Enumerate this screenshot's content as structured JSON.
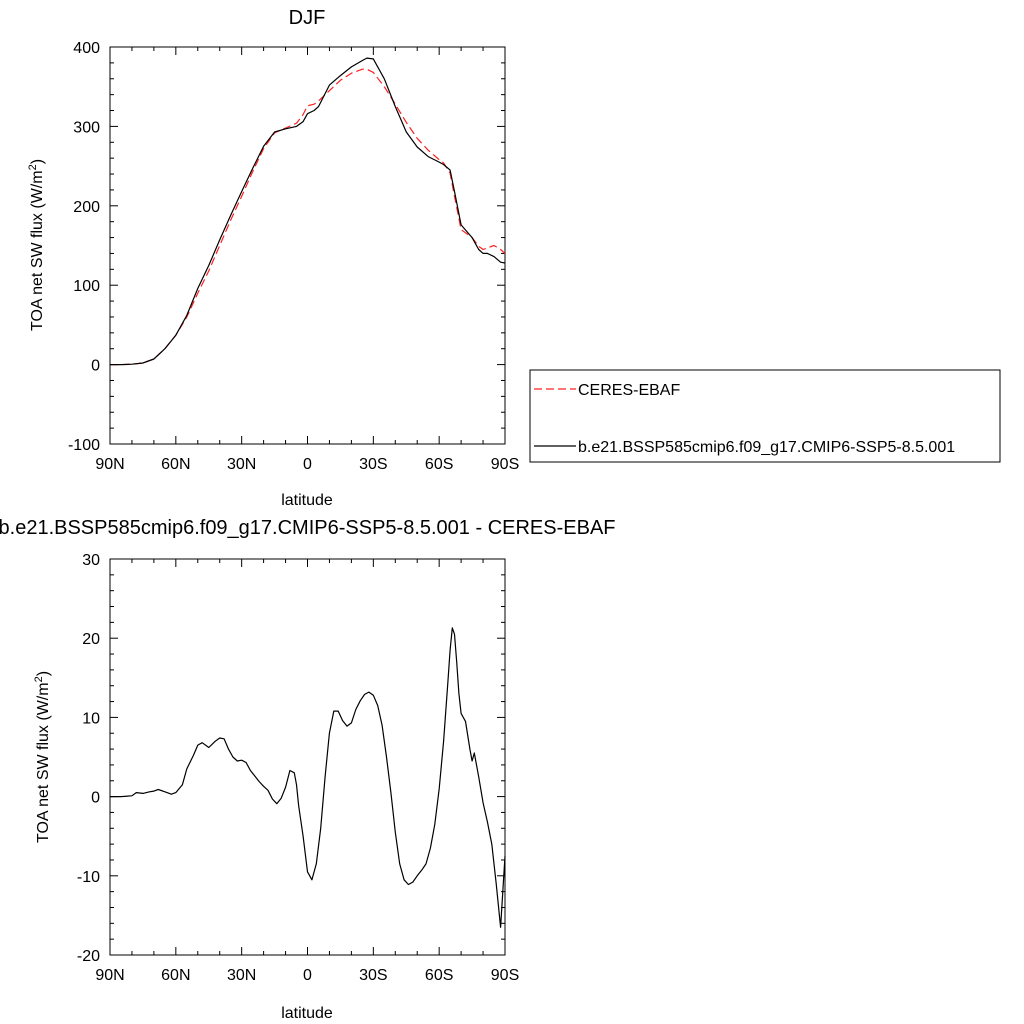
{
  "chart_data": [
    {
      "type": "line",
      "title": "DJF",
      "xlabel": "latitude",
      "ylabel": "TOA net SW flux (W/m²)",
      "xlim": [
        90,
        -90
      ],
      "ylim": [
        -100,
        400
      ],
      "xticks": [
        90,
        60,
        30,
        0,
        -30,
        -60,
        -90
      ],
      "xtick_labels": [
        "90N",
        "60N",
        "30N",
        "0",
        "30S",
        "60S",
        "90S"
      ],
      "yticks": [
        -100,
        0,
        100,
        200,
        300,
        400
      ],
      "ytick_labels": [
        "-100",
        "0",
        "100",
        "200",
        "300",
        "400"
      ],
      "grid": false,
      "legend": {
        "position": "right",
        "entries": [
          "CERES-EBAF",
          "b.e21.BSSP585cmip6.f09_g17.CMIP6-SSP5-8.5.001"
        ]
      },
      "series": [
        {
          "name": "CERES-EBAF",
          "color": "#ff2020",
          "dash": true,
          "x": [
            90,
            85,
            80,
            75,
            70,
            65,
            60,
            55,
            50,
            45,
            40,
            35,
            30,
            25,
            20,
            15,
            10,
            5,
            2,
            0,
            -3,
            -5,
            -10,
            -15,
            -20,
            -25,
            -27,
            -30,
            -35,
            -40,
            -45,
            -50,
            -55,
            -60,
            -62,
            -65,
            -67,
            -70,
            -75,
            -78,
            -80,
            -82,
            -85,
            -88,
            -90
          ],
          "y": [
            0,
            0,
            0.5,
            2,
            7,
            20,
            37,
            60,
            90,
            118,
            150,
            182,
            212,
            243,
            272,
            292,
            298,
            304,
            315,
            326,
            328,
            332,
            345,
            358,
            367,
            372,
            372,
            368,
            350,
            328,
            305,
            285,
            270,
            258,
            254,
            241,
            212,
            170,
            160,
            149,
            145,
            147,
            150,
            145,
            140
          ]
        },
        {
          "name": "b.e21.BSSP585cmip6.f09_g17.CMIP6-SSP5-8.5.001",
          "color": "#000000",
          "dash": false,
          "x": [
            90,
            85,
            80,
            75,
            70,
            65,
            60,
            55,
            50,
            45,
            40,
            35,
            30,
            25,
            20,
            15,
            10,
            5,
            2,
            0,
            -3,
            -5,
            -10,
            -15,
            -20,
            -25,
            -27,
            -30,
            -35,
            -40,
            -45,
            -50,
            -55,
            -60,
            -62,
            -65,
            -67,
            -70,
            -75,
            -78,
            -80,
            -82,
            -85,
            -88,
            -90
          ],
          "y": [
            0,
            0,
            0.5,
            2,
            7,
            20,
            37,
            62,
            96,
            125,
            157,
            188,
            218,
            247,
            275,
            293,
            297,
            300,
            306,
            316,
            320,
            325,
            352,
            364,
            375,
            383,
            386,
            385,
            360,
            325,
            293,
            274,
            262,
            255,
            252,
            245,
            218,
            176,
            160,
            145,
            140,
            140,
            136,
            129,
            128
          ]
        }
      ]
    },
    {
      "type": "line",
      "title": "b.e21.BSSP585cmip6.f09_g17.CMIP6-SSP5-8.5.001 - CERES-EBAF",
      "xlabel": "latitude",
      "ylabel": "TOA net SW flux (W/m²)",
      "xlim": [
        90,
        -90
      ],
      "ylim": [
        -20,
        30
      ],
      "xticks": [
        90,
        60,
        30,
        0,
        -30,
        -60,
        -90
      ],
      "xtick_labels": [
        "90N",
        "60N",
        "30N",
        "0",
        "30S",
        "60S",
        "90S"
      ],
      "yticks": [
        -20,
        -10,
        0,
        10,
        20,
        30
      ],
      "ytick_labels": [
        "-20",
        "-10",
        "0",
        "10",
        "20",
        "30"
      ],
      "grid": false,
      "series": [
        {
          "color": "#000000",
          "dash": false,
          "x": [
            90,
            85,
            80,
            78,
            75,
            72,
            70,
            68,
            65,
            62,
            60,
            57,
            55,
            52,
            50,
            48,
            45,
            42,
            40,
            38,
            36,
            34,
            32,
            30,
            28,
            26,
            24,
            22,
            20,
            18,
            16,
            14,
            12,
            10,
            8,
            6,
            5,
            4,
            2,
            0,
            -2,
            -4,
            -6,
            -8,
            -10,
            -12,
            -14,
            -16,
            -18,
            -20,
            -22,
            -24,
            -26,
            -28,
            -30,
            -32,
            -34,
            -36,
            -38,
            -40,
            -42,
            -44,
            -46,
            -48,
            -50,
            -52,
            -54,
            -56,
            -58,
            -60,
            -62,
            -64,
            -65,
            -66,
            -67,
            -68,
            -69,
            -70,
            -72,
            -74,
            -75,
            -76,
            -78,
            -80,
            -82,
            -84,
            -86,
            -88,
            -90
          ],
          "y": [
            0,
            0,
            0.1,
            0.5,
            0.4,
            0.6,
            0.7,
            0.9,
            0.6,
            0.3,
            0.5,
            1.5,
            3.5,
            5.2,
            6.5,
            6.8,
            6.2,
            7.0,
            7.4,
            7.3,
            6.0,
            5.0,
            4.5,
            4.6,
            4.3,
            3.3,
            2.6,
            1.9,
            1.3,
            0.8,
            -0.3,
            -0.9,
            -0.2,
            1.2,
            3.3,
            3.0,
            1.5,
            -1.2,
            -5.0,
            -9.5,
            -10.5,
            -8.5,
            -4.0,
            2.5,
            8.0,
            10.8,
            10.8,
            9.6,
            8.9,
            9.3,
            11.0,
            12.1,
            12.9,
            13.2,
            12.8,
            11.5,
            9.0,
            5.0,
            0.5,
            -4.5,
            -8.5,
            -10.5,
            -11.1,
            -10.8,
            -10.0,
            -9.3,
            -8.5,
            -6.5,
            -3.5,
            1.0,
            7.0,
            14.5,
            18.5,
            21.3,
            20.5,
            17.0,
            13.0,
            10.5,
            9.5,
            6.0,
            4.5,
            5.5,
            2.5,
            -0.8,
            -3.2,
            -6.0,
            -11.0,
            -16.5,
            -7.5
          ]
        }
      ]
    }
  ]
}
